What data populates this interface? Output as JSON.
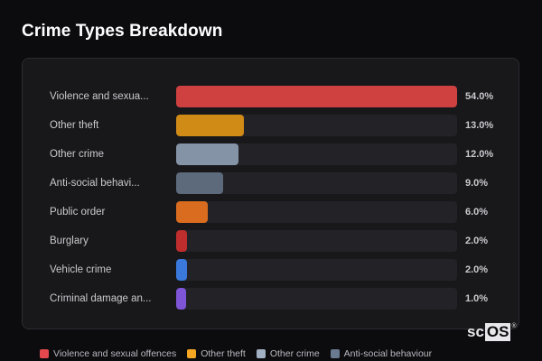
{
  "header": {
    "title": "Crime Types Breakdown"
  },
  "chart_data": {
    "type": "bar",
    "orientation": "horizontal",
    "title": "Crime Types Breakdown",
    "xlabel": "",
    "ylabel": "",
    "xlim": [
      0,
      54
    ],
    "grid": false,
    "legend_position": "bottom",
    "categories": [
      "Violence and sexual offences",
      "Other theft",
      "Other crime",
      "Anti-social behaviour",
      "Public order",
      "Burglary",
      "Vehicle crime",
      "Criminal damage and arson"
    ],
    "display_labels": [
      "Violence and sexua...",
      "Other theft",
      "Other crime",
      "Anti-social behavi...",
      "Public order",
      "Burglary",
      "Vehicle crime",
      "Criminal damage an..."
    ],
    "values": [
      54.0,
      13.0,
      12.0,
      9.0,
      6.0,
      2.0,
      2.0,
      1.0
    ],
    "value_labels": [
      "54.0%",
      "13.0%",
      "12.0%",
      "9.0%",
      "6.0%",
      "2.0%",
      "2.0%",
      "1.0%"
    ],
    "colors": [
      "#cf4040",
      "#d08a16",
      "#8593a6",
      "#5d6a7b",
      "#d96c1f",
      "#bf2d2d",
      "#3a78dc",
      "#7d55d6"
    ]
  },
  "legend": [
    {
      "label": "Violence and sexual offences",
      "color": "#e5484d"
    },
    {
      "label": "Other theft",
      "color": "#f5a623"
    },
    {
      "label": "Other crime",
      "color": "#a2b0c4"
    },
    {
      "label": "Anti-social behaviour",
      "color": "#6a7a90"
    }
  ],
  "watermark": {
    "prefix": "sc",
    "boxed": "OS",
    "mark": "®"
  }
}
